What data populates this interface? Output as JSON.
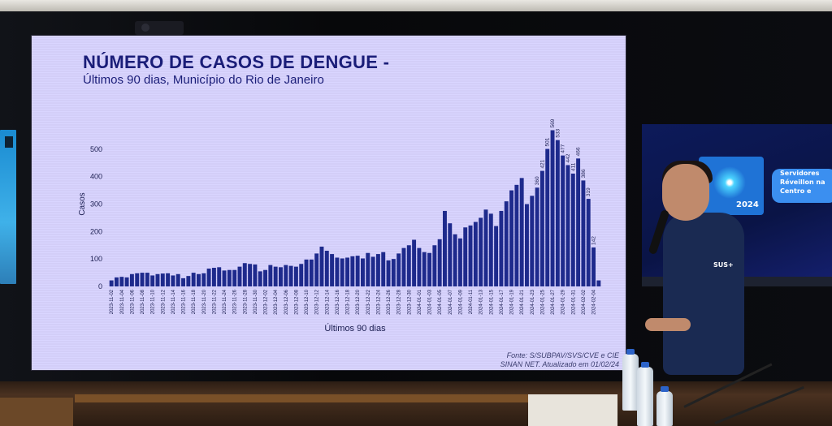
{
  "slide": {
    "title": "NÚMERO DE CASOS DE DENGUE -",
    "subtitle": "Últimos 90 dias, Município do Rio de Janeiro",
    "source_line1": "Fonte: S/SUBPAV/SVS/CVE e CIE",
    "source_line2": "SINAN NET. Atualizado em 01/02/24"
  },
  "colors": {
    "bar": "#1e2a8c",
    "title": "#1a1d78",
    "slide_bg": "#d7d3fc"
  },
  "chart_data": {
    "type": "bar",
    "title": "NÚMERO DE CASOS DE DENGUE -",
    "subtitle": "Últimos 90 dias, Município do Rio de Janeiro",
    "xlabel": "Últimos 90 dias",
    "ylabel": "Casos",
    "ylim": [
      0,
      600
    ],
    "yticks": [
      0,
      100,
      200,
      300,
      400,
      500
    ],
    "grid": false,
    "start_date": "2023-11-02",
    "values": [
      22,
      33,
      35,
      33,
      45,
      48,
      50,
      50,
      40,
      45,
      47,
      48,
      40,
      45,
      30,
      38,
      50,
      45,
      48,
      65,
      68,
      70,
      58,
      60,
      60,
      72,
      85,
      82,
      80,
      55,
      60,
      78,
      72,
      70,
      78,
      75,
      72,
      82,
      98,
      98,
      120,
      145,
      130,
      118,
      105,
      102,
      105,
      110,
      112,
      102,
      122,
      108,
      118,
      125,
      95,
      100,
      120,
      140,
      150,
      170,
      140,
      125,
      122,
      150,
      172,
      275,
      230,
      190,
      175,
      215,
      222,
      235,
      250,
      280,
      265,
      220,
      275,
      310,
      350,
      370,
      395,
      300,
      330,
      360,
      421,
      501,
      569,
      533,
      477,
      442,
      411,
      466,
      386,
      319,
      142,
      22
    ],
    "data_labels": [
      {
        "index": 83,
        "text": "360"
      },
      {
        "index": 84,
        "text": "421"
      },
      {
        "index": 85,
        "text": "501"
      },
      {
        "index": 86,
        "text": "569"
      },
      {
        "index": 87,
        "text": "533"
      },
      {
        "index": 88,
        "text": "477"
      },
      {
        "index": 89,
        "text": "442"
      },
      {
        "index": 90,
        "text": "411"
      },
      {
        "index": 91,
        "text": "466"
      },
      {
        "index": 92,
        "text": "386"
      },
      {
        "index": 93,
        "text": "319"
      },
      {
        "index": 94,
        "text": "142"
      }
    ]
  },
  "right_screen": {
    "card_year": "2024",
    "pill_line1": "Servidores",
    "pill_line2": "Réveillon na",
    "pill_line3": "Centro e"
  }
}
